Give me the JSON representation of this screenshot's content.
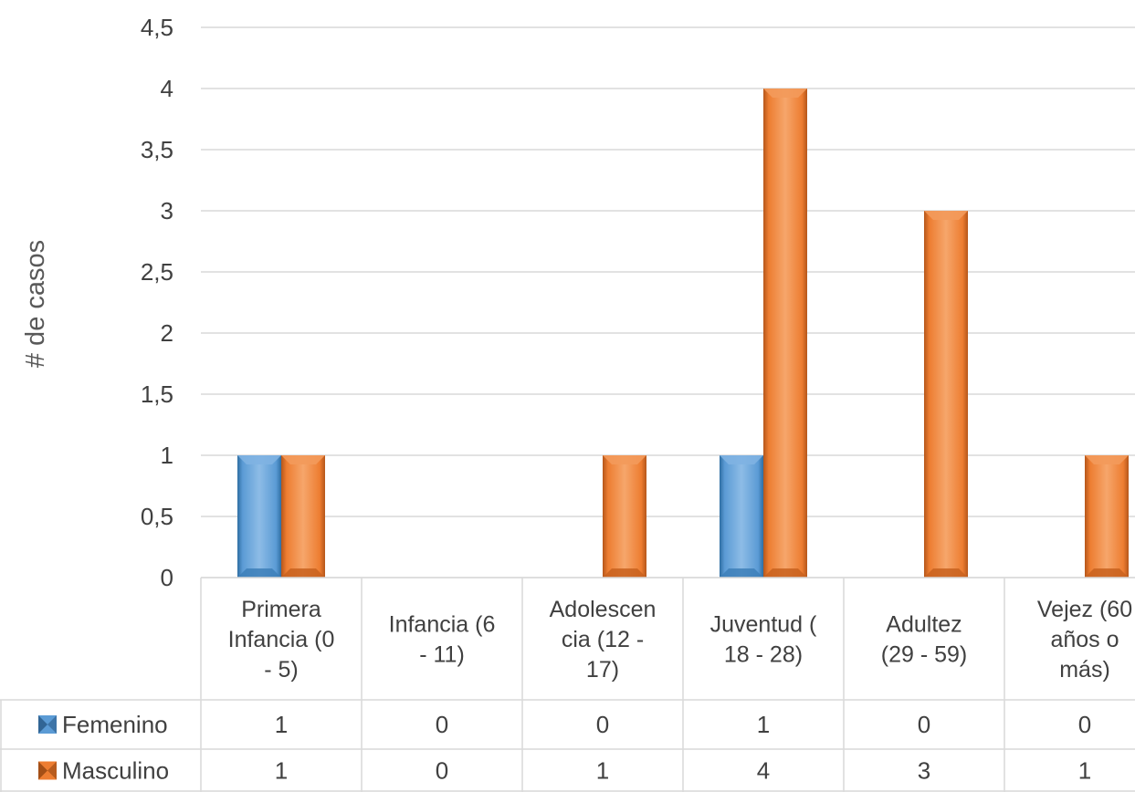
{
  "chart_data": {
    "type": "bar",
    "title": "",
    "xlabel": "",
    "ylabel": "# de casos",
    "ylim": [
      0,
      4.5
    ],
    "y_ticks": [
      "0",
      "0,5",
      "1",
      "1,5",
      "2",
      "2,5",
      "3",
      "3,5",
      "4",
      "4,5"
    ],
    "grid": true,
    "legend": "data-table",
    "categories": [
      [
        "Primera",
        "Infancia (0",
        "- 5)"
      ],
      [
        "Infancia (6",
        "- 11)"
      ],
      [
        "Adolescen",
        "cia (12 -",
        "17)"
      ],
      [
        "Juventud (",
        "18 - 28)"
      ],
      [
        "Adultez",
        "(29 - 59)"
      ],
      [
        "Vejez (60",
        "años o",
        "más)"
      ]
    ],
    "series": [
      {
        "name": "Femenino",
        "color": "#5B9BD5",
        "values": [
          1,
          0,
          0,
          1,
          0,
          0
        ],
        "value_labels": [
          "1",
          "0",
          "0",
          "1",
          "0",
          "0"
        ]
      },
      {
        "name": "Masculino",
        "color": "#ED7D31",
        "values": [
          1,
          0,
          1,
          4,
          3,
          1
        ],
        "value_labels": [
          "1",
          "0",
          "1",
          "4",
          "3",
          "1"
        ]
      }
    ]
  }
}
